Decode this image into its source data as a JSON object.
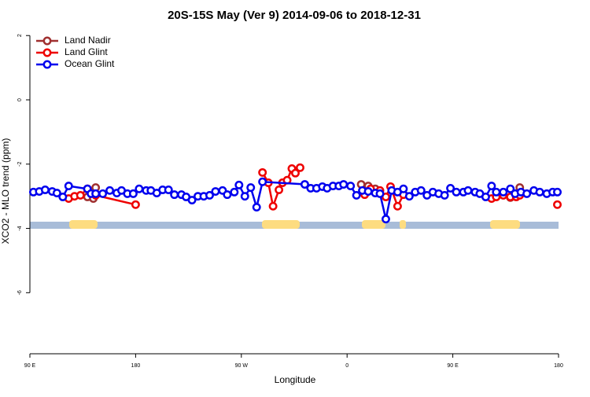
{
  "chart_data": {
    "type": "line",
    "title": "20S-15S May (Ver 9)   2014-09-06 to 2018-12-31",
    "x_label": "Longitude",
    "y_label": "XCO2 - MLO trend (ppm)",
    "xlim": [
      90,
      540
    ],
    "ylim": [
      -7.9,
      2.25
    ],
    "xticks": [
      {
        "value": 90,
        "label": "90 E"
      },
      180,
      {
        "value": 270,
        "label": "90 W"
      },
      {
        "value": 360,
        "label": "0"
      },
      {
        "value": 450,
        "label": "90 E"
      },
      {
        "value": 540,
        "label": "180"
      }
    ],
    "yticks": [
      2,
      0,
      -2,
      -4,
      -6
    ],
    "grid": false,
    "legend": "top-left",
    "series": [
      {
        "name": "Land Nadir",
        "color": "#a03030",
        "x": [
          139,
          144,
          146,
          null,
          372,
          378,
          384,
          null,
          499,
          507
        ],
        "values": [
          -3.02,
          -3.07,
          -2.73,
          null,
          -2.63,
          -2.68,
          -2.77,
          null,
          -3.04,
          -2.73
        ]
      },
      {
        "name": "Land Glint",
        "color": "#ee0000",
        "x": [
          123,
          128,
          133,
          139,
          146,
          180,
          null,
          288,
          293,
          297,
          302,
          305,
          309,
          313,
          316,
          320,
          null,
          375,
          380,
          388,
          393,
          397,
          403,
          408,
          null,
          483,
          487,
          493,
          499,
          504,
          507,
          null,
          539
        ],
        "values": [
          -3.07,
          -3.0,
          -2.97,
          -2.77,
          -2.97,
          -3.26,
          null,
          -2.26,
          -2.58,
          -3.31,
          -2.8,
          -2.58,
          -2.5,
          -2.14,
          -2.28,
          -2.11,
          null,
          -2.95,
          -2.77,
          -2.82,
          -3.02,
          -2.7,
          -3.31,
          -2.95,
          null,
          -3.07,
          -3.02,
          -2.97,
          -3.02,
          -3.02,
          -2.97,
          null,
          -3.26
        ]
      },
      {
        "name": "Ocean Glint",
        "color": "#0000ee",
        "x": [
          93,
          98,
          103,
          109,
          113,
          118,
          123,
          139,
          142,
          146,
          152,
          158,
          164,
          168,
          173,
          178,
          183,
          189,
          193,
          198,
          203,
          208,
          213,
          219,
          223,
          228,
          233,
          238,
          243,
          248,
          254,
          258,
          264,
          268,
          273,
          278,
          283,
          288,
          324,
          329,
          334,
          339,
          343,
          348,
          353,
          357,
          363,
          368,
          373,
          378,
          384,
          388,
          393,
          398,
          403,
          408,
          413,
          418,
          423,
          428,
          433,
          438,
          443,
          448,
          453,
          459,
          463,
          469,
          473,
          478,
          483,
          487,
          493,
          499,
          503,
          508,
          513,
          519,
          524,
          530,
          535,
          539
        ],
        "values": [
          -2.87,
          -2.85,
          -2.8,
          -2.85,
          -2.9,
          -3.02,
          -2.68,
          -2.77,
          -2.92,
          -2.92,
          -2.92,
          -2.82,
          -2.9,
          -2.82,
          -2.92,
          -2.92,
          -2.77,
          -2.82,
          -2.82,
          -2.9,
          -2.8,
          -2.8,
          -2.95,
          -2.95,
          -3.02,
          -3.12,
          -3.0,
          -3.0,
          -2.97,
          -2.85,
          -2.82,
          -2.95,
          -2.87,
          -2.65,
          -3.0,
          -2.73,
          -3.34,
          -2.55,
          -2.63,
          -2.75,
          -2.75,
          -2.7,
          -2.75,
          -2.68,
          -2.68,
          -2.63,
          -2.68,
          -2.97,
          -2.82,
          -2.85,
          -2.9,
          -2.92,
          -3.71,
          -2.82,
          -2.87,
          -2.77,
          -3.0,
          -2.87,
          -2.82,
          -2.97,
          -2.87,
          -2.92,
          -2.97,
          -2.75,
          -2.87,
          -2.87,
          -2.82,
          -2.87,
          -2.92,
          -3.02,
          -2.68,
          -2.87,
          -2.87,
          -2.77,
          -2.92,
          -2.87,
          -2.92,
          -2.82,
          -2.87,
          -2.92,
          -2.87,
          -2.87
        ]
      }
    ]
  }
}
